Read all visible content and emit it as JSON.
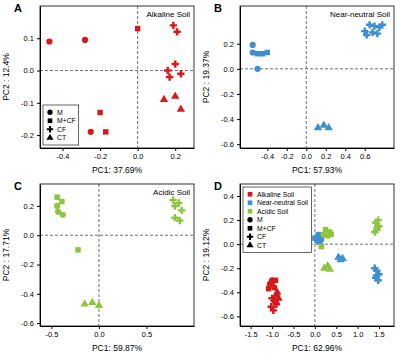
{
  "chart_data": [
    {
      "type": "scatter",
      "title": "A",
      "annotation": "Alkaline Soil",
      "x_label": "PC1: 37.69%",
      "y_label": "PC2 : 12.4%",
      "xlim": [
        -0.52,
        0.3
      ],
      "ylim": [
        -0.24,
        0.2
      ],
      "xticks": [
        -0.4,
        -0.2,
        {
          "value": 0,
          "label": "0.0"
        },
        0.2
      ],
      "yticks": [
        -0.2,
        -0.1,
        {
          "value": 0,
          "label": "0.0"
        },
        0.1
      ],
      "legend": "bottom-left",
      "series": [
        {
          "name": "M",
          "color": "#d7191c",
          "marker": "circle",
          "x": [
            -0.47,
            -0.28,
            -0.25
          ],
          "values": [
            0.09,
            0.095,
            -0.19
          ]
        },
        {
          "name": "M+CF",
          "color": "#d7191c",
          "marker": "square",
          "x": [
            0.0,
            -0.2,
            -0.17
          ],
          "values": [
            0.13,
            -0.13,
            -0.19
          ]
        },
        {
          "name": "CF",
          "color": "#d7191c",
          "marker": "cross",
          "x": [
            0.19,
            0.21,
            0.16,
            0.2,
            0.23,
            0.17
          ],
          "values": [
            0.14,
            0.12,
            0.0,
            0.02,
            -0.01,
            -0.02
          ]
        },
        {
          "name": "CT",
          "color": "#d7191c",
          "marker": "triangle",
          "x": [
            0.14,
            0.2,
            0.23
          ],
          "values": [
            -0.09,
            -0.08,
            -0.12
          ]
        }
      ]
    },
    {
      "type": "scatter",
      "title": "B",
      "annotation": "Near-neutral Soil",
      "x_label": "PC1: 57.93%",
      "y_label": "PC2 : 19.37%",
      "xlim": [
        -0.68,
        0.9
      ],
      "ylim": [
        -0.63,
        0.5
      ],
      "xticks": [
        -0.4,
        -0.2,
        {
          "value": 0,
          "label": "0.0"
        },
        0.2,
        0.4,
        0.6
      ],
      "yticks": [
        -0.6,
        -0.4,
        -0.2,
        {
          "value": 0,
          "label": "0.0"
        },
        0.2
      ],
      "series": [
        {
          "color": "#3d8fd1",
          "marker": "circle",
          "x": [
            -0.55,
            -0.55,
            -0.5
          ],
          "values": [
            0.19,
            0.13,
            0.0
          ]
        },
        {
          "color": "#3d8fd1",
          "marker": "square",
          "x": [
            -0.5,
            -0.45,
            -0.4
          ],
          "values": [
            0.12,
            0.12,
            0.13
          ]
        },
        {
          "color": "#3d8fd1",
          "marker": "cross",
          "x": [
            0.6,
            0.65,
            0.7,
            0.75,
            0.62,
            0.68,
            0.73,
            0.78
          ],
          "values": [
            0.3,
            0.35,
            0.34,
            0.33,
            0.27,
            0.29,
            0.28,
            0.35
          ]
        },
        {
          "color": "#3d8fd1",
          "marker": "triangle",
          "x": [
            0.12,
            0.18,
            0.23
          ],
          "values": [
            -0.47,
            -0.45,
            -0.47
          ]
        }
      ]
    },
    {
      "type": "scatter",
      "title": "C",
      "annotation": "Acidic Soil",
      "x_label": "PC1: 59.87%",
      "y_label": "PC2 : 17.71%",
      "xlim": [
        -0.62,
        1.0
      ],
      "ylim": [
        -0.62,
        0.35
      ],
      "xticks": [
        -0.5,
        {
          "value": 0,
          "label": "0.0"
        },
        0.5
      ],
      "yticks": [
        -0.6,
        -0.4,
        -0.2,
        {
          "value": 0,
          "label": "0.0"
        },
        0.2
      ],
      "series": [
        {
          "color": "#8cc63e",
          "marker": "circle",
          "x": [
            -0.44,
            -0.43,
            -0.38
          ],
          "values": [
            0.2,
            0.16,
            0.14
          ]
        },
        {
          "color": "#8cc63e",
          "marker": "square",
          "x": [
            -0.44,
            -0.39,
            -0.22
          ],
          "values": [
            0.26,
            0.23,
            -0.1
          ]
        },
        {
          "color": "#8cc63e",
          "marker": "cross",
          "x": [
            0.78,
            0.8,
            0.84,
            0.87,
            0.8,
            0.85
          ],
          "values": [
            0.24,
            0.2,
            0.22,
            0.17,
            0.12,
            0.1
          ]
        },
        {
          "color": "#8cc63e",
          "marker": "triangle",
          "x": [
            -0.15,
            -0.07,
            0.0
          ],
          "values": [
            -0.47,
            -0.46,
            -0.48
          ]
        }
      ]
    },
    {
      "type": "scatter",
      "title": "D",
      "x_label": "PC1: 62.96%",
      "y_label": "PC2 : 19.12%",
      "xlim": [
        -1.75,
        1.85
      ],
      "ylim": [
        -0.68,
        0.5
      ],
      "xticks": [
        -1.5,
        {
          "value": -1,
          "label": "-1.0"
        },
        -0.5,
        {
          "value": 0,
          "label": "0.0"
        },
        0.5,
        {
          "value": 1,
          "label": "1.0"
        },
        1.5
      ],
      "yticks": [
        -0.6,
        -0.4,
        -0.2,
        {
          "value": 0,
          "label": "0.0"
        },
        0.2,
        0.4
      ],
      "legend": "top-left",
      "legend_entries": [
        {
          "name": "Alkaline Soil",
          "color": "#d7191c",
          "marker": "square"
        },
        {
          "name": "Near-neutral Soil",
          "color": "#3d8fd1",
          "marker": "square"
        },
        {
          "name": "Acidic Soil",
          "color": "#8cc63e",
          "marker": "square"
        },
        {
          "name": "M",
          "color": "#000000",
          "marker": "circle"
        },
        {
          "name": "M+CF",
          "color": "#000000",
          "marker": "square"
        },
        {
          "name": "CF",
          "color": "#000000",
          "marker": "cross"
        },
        {
          "name": "CT",
          "color": "#000000",
          "marker": "triangle"
        }
      ],
      "series": [
        {
          "color": "#d7191c",
          "marker": "circle",
          "x": [
            -1.0,
            -1.05,
            -0.95
          ],
          "values": [
            -0.3,
            -0.33,
            -0.36
          ]
        },
        {
          "color": "#d7191c",
          "marker": "square",
          "x": [
            -1.0,
            -0.92,
            -1.08
          ],
          "values": [
            -0.32,
            -0.3,
            -0.37
          ]
        },
        {
          "color": "#d7191c",
          "marker": "cross",
          "x": [
            -1.0,
            -0.95,
            -0.9,
            -1.02,
            -0.97,
            -0.92
          ],
          "values": [
            -0.45,
            -0.47,
            -0.5,
            -0.52,
            -0.55,
            -0.48
          ]
        },
        {
          "color": "#d7191c",
          "marker": "triangle",
          "x": [
            -0.9,
            -0.85,
            -0.88
          ],
          "values": [
            -0.42,
            -0.45,
            -0.4
          ]
        },
        {
          "color": "#3d8fd1",
          "marker": "circle",
          "x": [
            0.05,
            0.1,
            0.15
          ],
          "values": [
            0.03,
            0.06,
            0.04
          ]
        },
        {
          "color": "#3d8fd1",
          "marker": "square",
          "x": [
            0.0,
            0.08,
            0.12
          ],
          "values": [
            0.05,
            0.08,
            0.02
          ]
        },
        {
          "color": "#3d8fd1",
          "marker": "cross",
          "x": [
            1.4,
            1.45,
            1.5,
            1.42,
            1.48,
            1.44
          ],
          "values": [
            -0.2,
            -0.22,
            -0.25,
            -0.28,
            -0.3,
            -0.26
          ]
        },
        {
          "color": "#3d8fd1",
          "marker": "triangle",
          "x": [
            0.55,
            0.6,
            0.65
          ],
          "values": [
            -0.11,
            -0.13,
            -0.12
          ]
        },
        {
          "color": "#8cc63e",
          "marker": "circle",
          "x": [
            0.2,
            0.3,
            0.35
          ],
          "values": [
            0.08,
            0.07,
            0.1
          ]
        },
        {
          "color": "#8cc63e",
          "marker": "square",
          "x": [
            0.25,
            0.38,
            0.15
          ],
          "values": [
            0.12,
            0.08,
            -0.02
          ]
        },
        {
          "color": "#8cc63e",
          "marker": "cross",
          "x": [
            1.4,
            1.45,
            1.5,
            1.42,
            1.48,
            1.46
          ],
          "values": [
            0.1,
            0.12,
            0.15,
            0.18,
            0.2,
            0.14
          ]
        },
        {
          "color": "#8cc63e",
          "marker": "triangle",
          "x": [
            0.22,
            0.3,
            0.35
          ],
          "values": [
            -0.2,
            -0.18,
            -0.21
          ]
        }
      ]
    }
  ]
}
